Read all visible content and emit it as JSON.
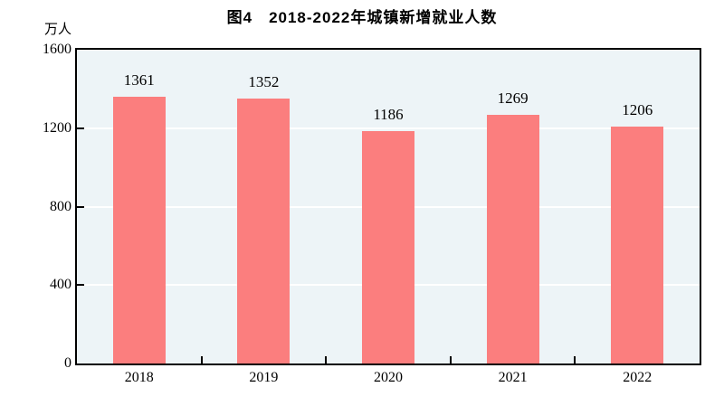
{
  "title": "图4　2018-2022年城镇新增就业人数",
  "chart_data": {
    "type": "bar",
    "title": "图4　2018-2022年城镇新增就业人数",
    "categories": [
      "2018",
      "2019",
      "2020",
      "2021",
      "2022"
    ],
    "values": [
      1361,
      1352,
      1186,
      1269,
      1206
    ],
    "xlabel": "",
    "ylabel": "万人",
    "ylim": [
      0,
      1600
    ],
    "yticks": [
      0,
      400,
      800,
      1200,
      1600
    ],
    "value_labels": [
      1361,
      1352,
      1186,
      1269,
      1206
    ],
    "grid": "horizontal",
    "legend": "none",
    "colors": {
      "bar": "#fb7e7e",
      "plot_background": "#edf4f7",
      "gridline": "#ffffff",
      "axis_frame": "#000000",
      "text": "#000000"
    }
  }
}
